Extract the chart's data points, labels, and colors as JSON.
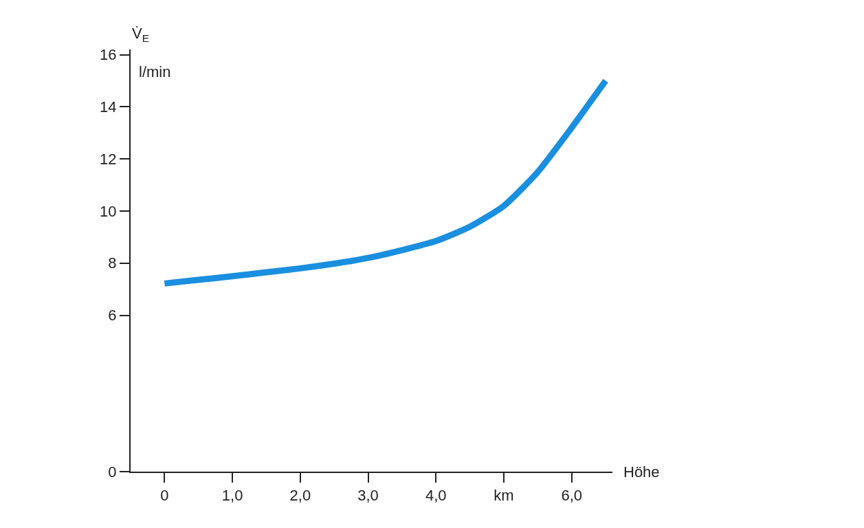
{
  "chart_data": {
    "type": "line",
    "ylabel": "V̇$_{E}$",
    "xlabel": "Höhe",
    "annotations": [
      "l/min"
    ],
    "x": [
      0,
      0.5,
      1,
      1.5,
      2,
      2.5,
      3,
      3.5,
      4,
      4.5,
      5,
      5.5,
      6,
      6.5
    ],
    "series": [
      {
        "color": "#1a8fe0",
        "values": [
          7.22,
          7.36,
          7.5,
          7.65,
          7.8,
          7.98,
          8.2,
          8.5,
          8.85,
          9.4,
          10.2,
          11.5,
          13.2,
          15.0
        ]
      }
    ],
    "xlim": [
      -0.5,
      6.6
    ],
    "xticks": [
      0,
      {
        "value": 1,
        "label": "1,0"
      },
      {
        "value": 2,
        "label": "2,0"
      },
      {
        "value": 3,
        "label": "3,0"
      },
      {
        "value": 4,
        "label": "4,0"
      },
      {
        "value": 5,
        "label": "km"
      },
      {
        "value": 6,
        "label": "6,0"
      }
    ],
    "ylim": [
      0,
      16.2
    ],
    "yticks": [
      0,
      6,
      8,
      10,
      12,
      14,
      16
    ],
    "grid": false,
    "marker": "none",
    "line_style": "solid"
  }
}
